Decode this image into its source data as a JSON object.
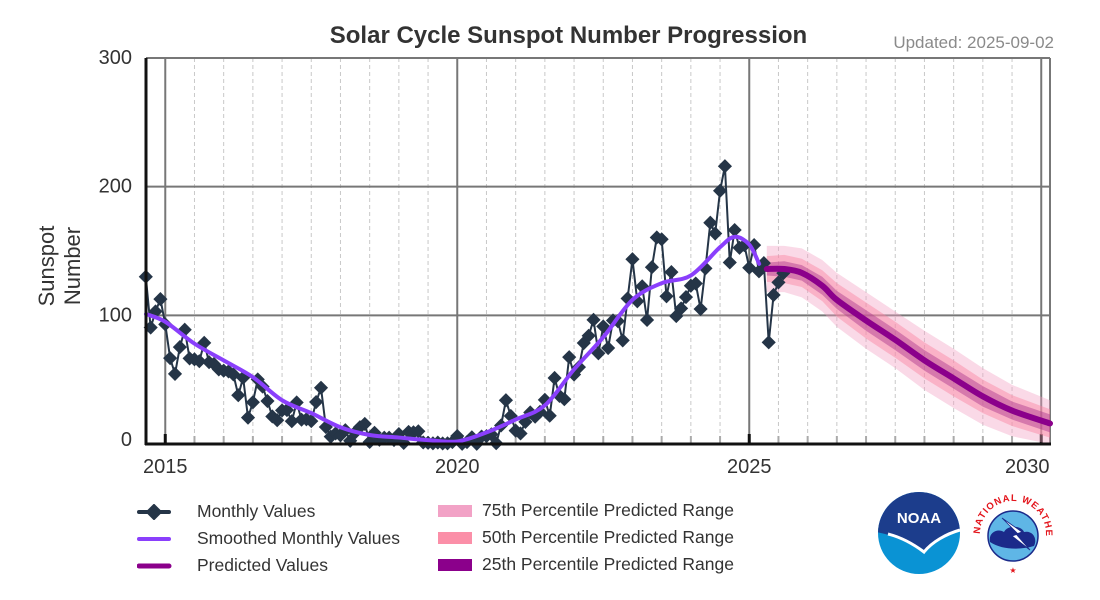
{
  "chart_data": {
    "type": "line",
    "title": "Solar Cycle Sunspot Number Progression",
    "subtitle": "Updated: 2025-09-02",
    "ylabel": "Sunspot Number",
    "xlabel": "",
    "xlim": [
      2014.67,
      2030.15
    ],
    "ylim": [
      0,
      300
    ],
    "x_ticks": [
      2015,
      2020,
      2025,
      2030
    ],
    "y_ticks": [
      0,
      100,
      200,
      300
    ],
    "grid": true,
    "legend_placement": "bottom",
    "colors": {
      "monthly": "#253547",
      "smoothed": "#8a3ffc",
      "predicted": "#8b008b",
      "p75": "#f2a2c6",
      "p50": "#fb8fa8",
      "p25": "#8b008b"
    },
    "monthly_values": {
      "2014": [
        null,
        null,
        null,
        null,
        null,
        null,
        null,
        null,
        130,
        90.5,
        103,
        112.6
      ],
      "2015": [
        93,
        66.7,
        54.5,
        75.3,
        88.8,
        66.5,
        65.8,
        64.4,
        78.6,
        63.6,
        62.2,
        58
      ],
      "2016": [
        57,
        56.4,
        54.1,
        37.9,
        51.5,
        20.5,
        32.4,
        50.2,
        44.6,
        33.4,
        21.4,
        18.5
      ],
      "2017": [
        26.1,
        26.4,
        17.7,
        32.3,
        18.9,
        19.2,
        17.8,
        32.6,
        43.7,
        13.2,
        5.7,
        8.2
      ],
      "2018": [
        6.8,
        10.7,
        2.5,
        8.9,
        13.1,
        15.6,
        1.6,
        8.7,
        3.3,
        4.9,
        4.9,
        3.1
      ],
      "2019": [
        7.7,
        0.8,
        9.4,
        9.1,
        9.9,
        1.2,
        0.9,
        0.5,
        1.1,
        0.4,
        0.5,
        1.5
      ],
      "2020": [
        6.2,
        0.2,
        1.5,
        5.2,
        0.2,
        5.8,
        6.1,
        7.5,
        0.6,
        14.4,
        34,
        21.8
      ],
      "2021": [
        10.4,
        8.2,
        17.2,
        24.5,
        21.2,
        25,
        34.3,
        22,
        51.3,
        37.4,
        34.8,
        67.5
      ],
      "2022": [
        54,
        59.7,
        78.5,
        84.1,
        96.5,
        70.5,
        91.4,
        74.6,
        96,
        95.5,
        80.5,
        113.1
      ],
      "2023": [
        143.6,
        110.9,
        122.5,
        96.4,
        137.4,
        160.5,
        159.1,
        114.8,
        133.6,
        99.4,
        105.4,
        114.2
      ],
      "2024": [
        123,
        124.7,
        104.9,
        136.5,
        172,
        163.6,
        196.8,
        215.9,
        141.1,
        166.3,
        152.5,
        154.5
      ],
      "2025": [
        137,
        154.6,
        134.2,
        140.6,
        79,
        115.8,
        125.6,
        132.8
      ]
    },
    "smoothed": {
      "x": [
        2014.67,
        2015.0,
        2015.5,
        2016.0,
        2016.5,
        2017.0,
        2017.5,
        2018.0,
        2018.5,
        2019.0,
        2019.5,
        2020.0,
        2020.5,
        2021.0,
        2021.5,
        2022.0,
        2022.5,
        2023.0,
        2023.5,
        2024.0,
        2024.5,
        2024.75,
        2025.0,
        2025.17
      ],
      "y": [
        101,
        95,
        78,
        65,
        52,
        34,
        24,
        13,
        7,
        5,
        3,
        2,
        9,
        19,
        30,
        58,
        83,
        112,
        125,
        131,
        153,
        161,
        155,
        140
      ]
    },
    "predicted": {
      "x": [
        2025.3,
        2025.6,
        2025.9,
        2026.25,
        2026.5,
        2027.0,
        2027.5,
        2028.0,
        2028.5,
        2029.0,
        2029.5,
        2030.15
      ],
      "y": [
        136,
        136,
        133,
        123,
        112,
        96,
        81,
        65,
        51,
        37,
        26,
        16
      ],
      "p25_low": [
        131,
        130,
        127,
        116,
        105,
        88,
        73,
        57,
        43,
        29,
        19,
        9
      ],
      "p25_high": [
        141,
        142,
        139,
        130,
        119,
        104,
        89,
        73,
        59,
        45,
        33,
        23
      ],
      "p50_low": [
        126,
        125,
        122,
        111,
        99,
        82,
        67,
        51,
        37,
        24,
        14,
        5
      ],
      "p50_high": [
        146,
        147,
        144,
        135,
        125,
        110,
        95,
        79,
        65,
        50,
        38,
        27
      ],
      "p75_low": [
        118,
        118,
        114,
        103,
        91,
        74,
        59,
        42,
        28,
        15,
        6,
        0
      ],
      "p75_high": [
        154,
        154,
        152,
        143,
        133,
        118,
        103,
        88,
        74,
        59,
        46,
        34
      ]
    },
    "legend": {
      "monthly": "Monthly Values",
      "smoothed": "Smoothed Monthly Values",
      "predicted": "Predicted Values",
      "p75": "75th Percentile Predicted Range",
      "p50": "50th Percentile Predicted Range",
      "p25": "25th Percentile Predicted Range"
    }
  },
  "logos": {
    "noaa": "NOAA",
    "nws": "NATIONAL WEATHER SERVICE"
  }
}
